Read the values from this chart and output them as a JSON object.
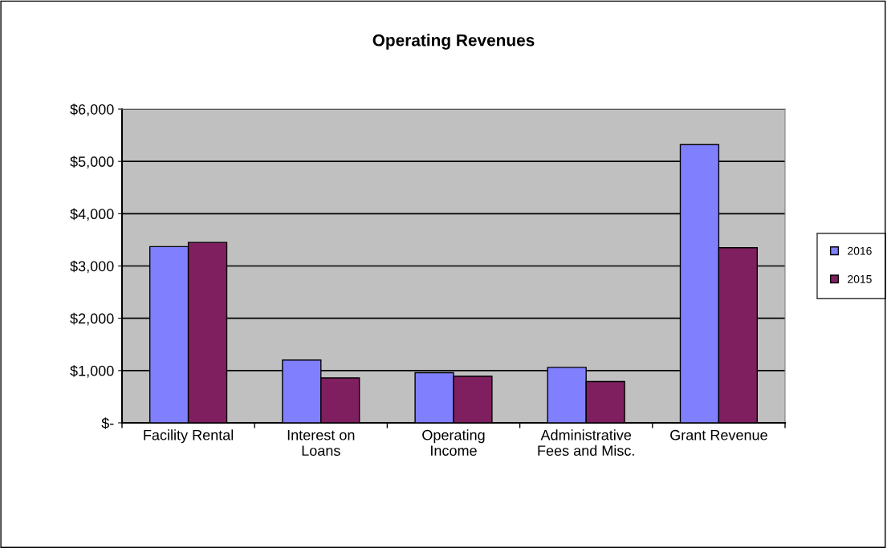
{
  "chart_data": {
    "type": "bar",
    "title": "Operating Revenues",
    "categories": [
      "Facility Rental",
      "Interest on\nLoans",
      "Operating\nIncome",
      "Administrative\nFees and Misc.",
      "Grant Revenue"
    ],
    "series": [
      {
        "name": "2016",
        "color": "#8080ff",
        "values": [
          3370,
          1200,
          960,
          1060,
          5320
        ]
      },
      {
        "name": "2015",
        "color": "#7f1f5f",
        "values": [
          3450,
          860,
          890,
          790,
          3350
        ]
      }
    ],
    "ylim": [
      0,
      6000
    ],
    "yticks": [
      {
        "value": 0,
        "label": "$-"
      },
      {
        "value": 1000,
        "label": "$1,000"
      },
      {
        "value": 2000,
        "label": "$2,000"
      },
      {
        "value": 3000,
        "label": "$3,000"
      },
      {
        "value": 4000,
        "label": "$4,000"
      },
      {
        "value": 5000,
        "label": "$5,000"
      },
      {
        "value": 6000,
        "label": "$6,000"
      }
    ],
    "grid": "y",
    "legend": "right"
  }
}
